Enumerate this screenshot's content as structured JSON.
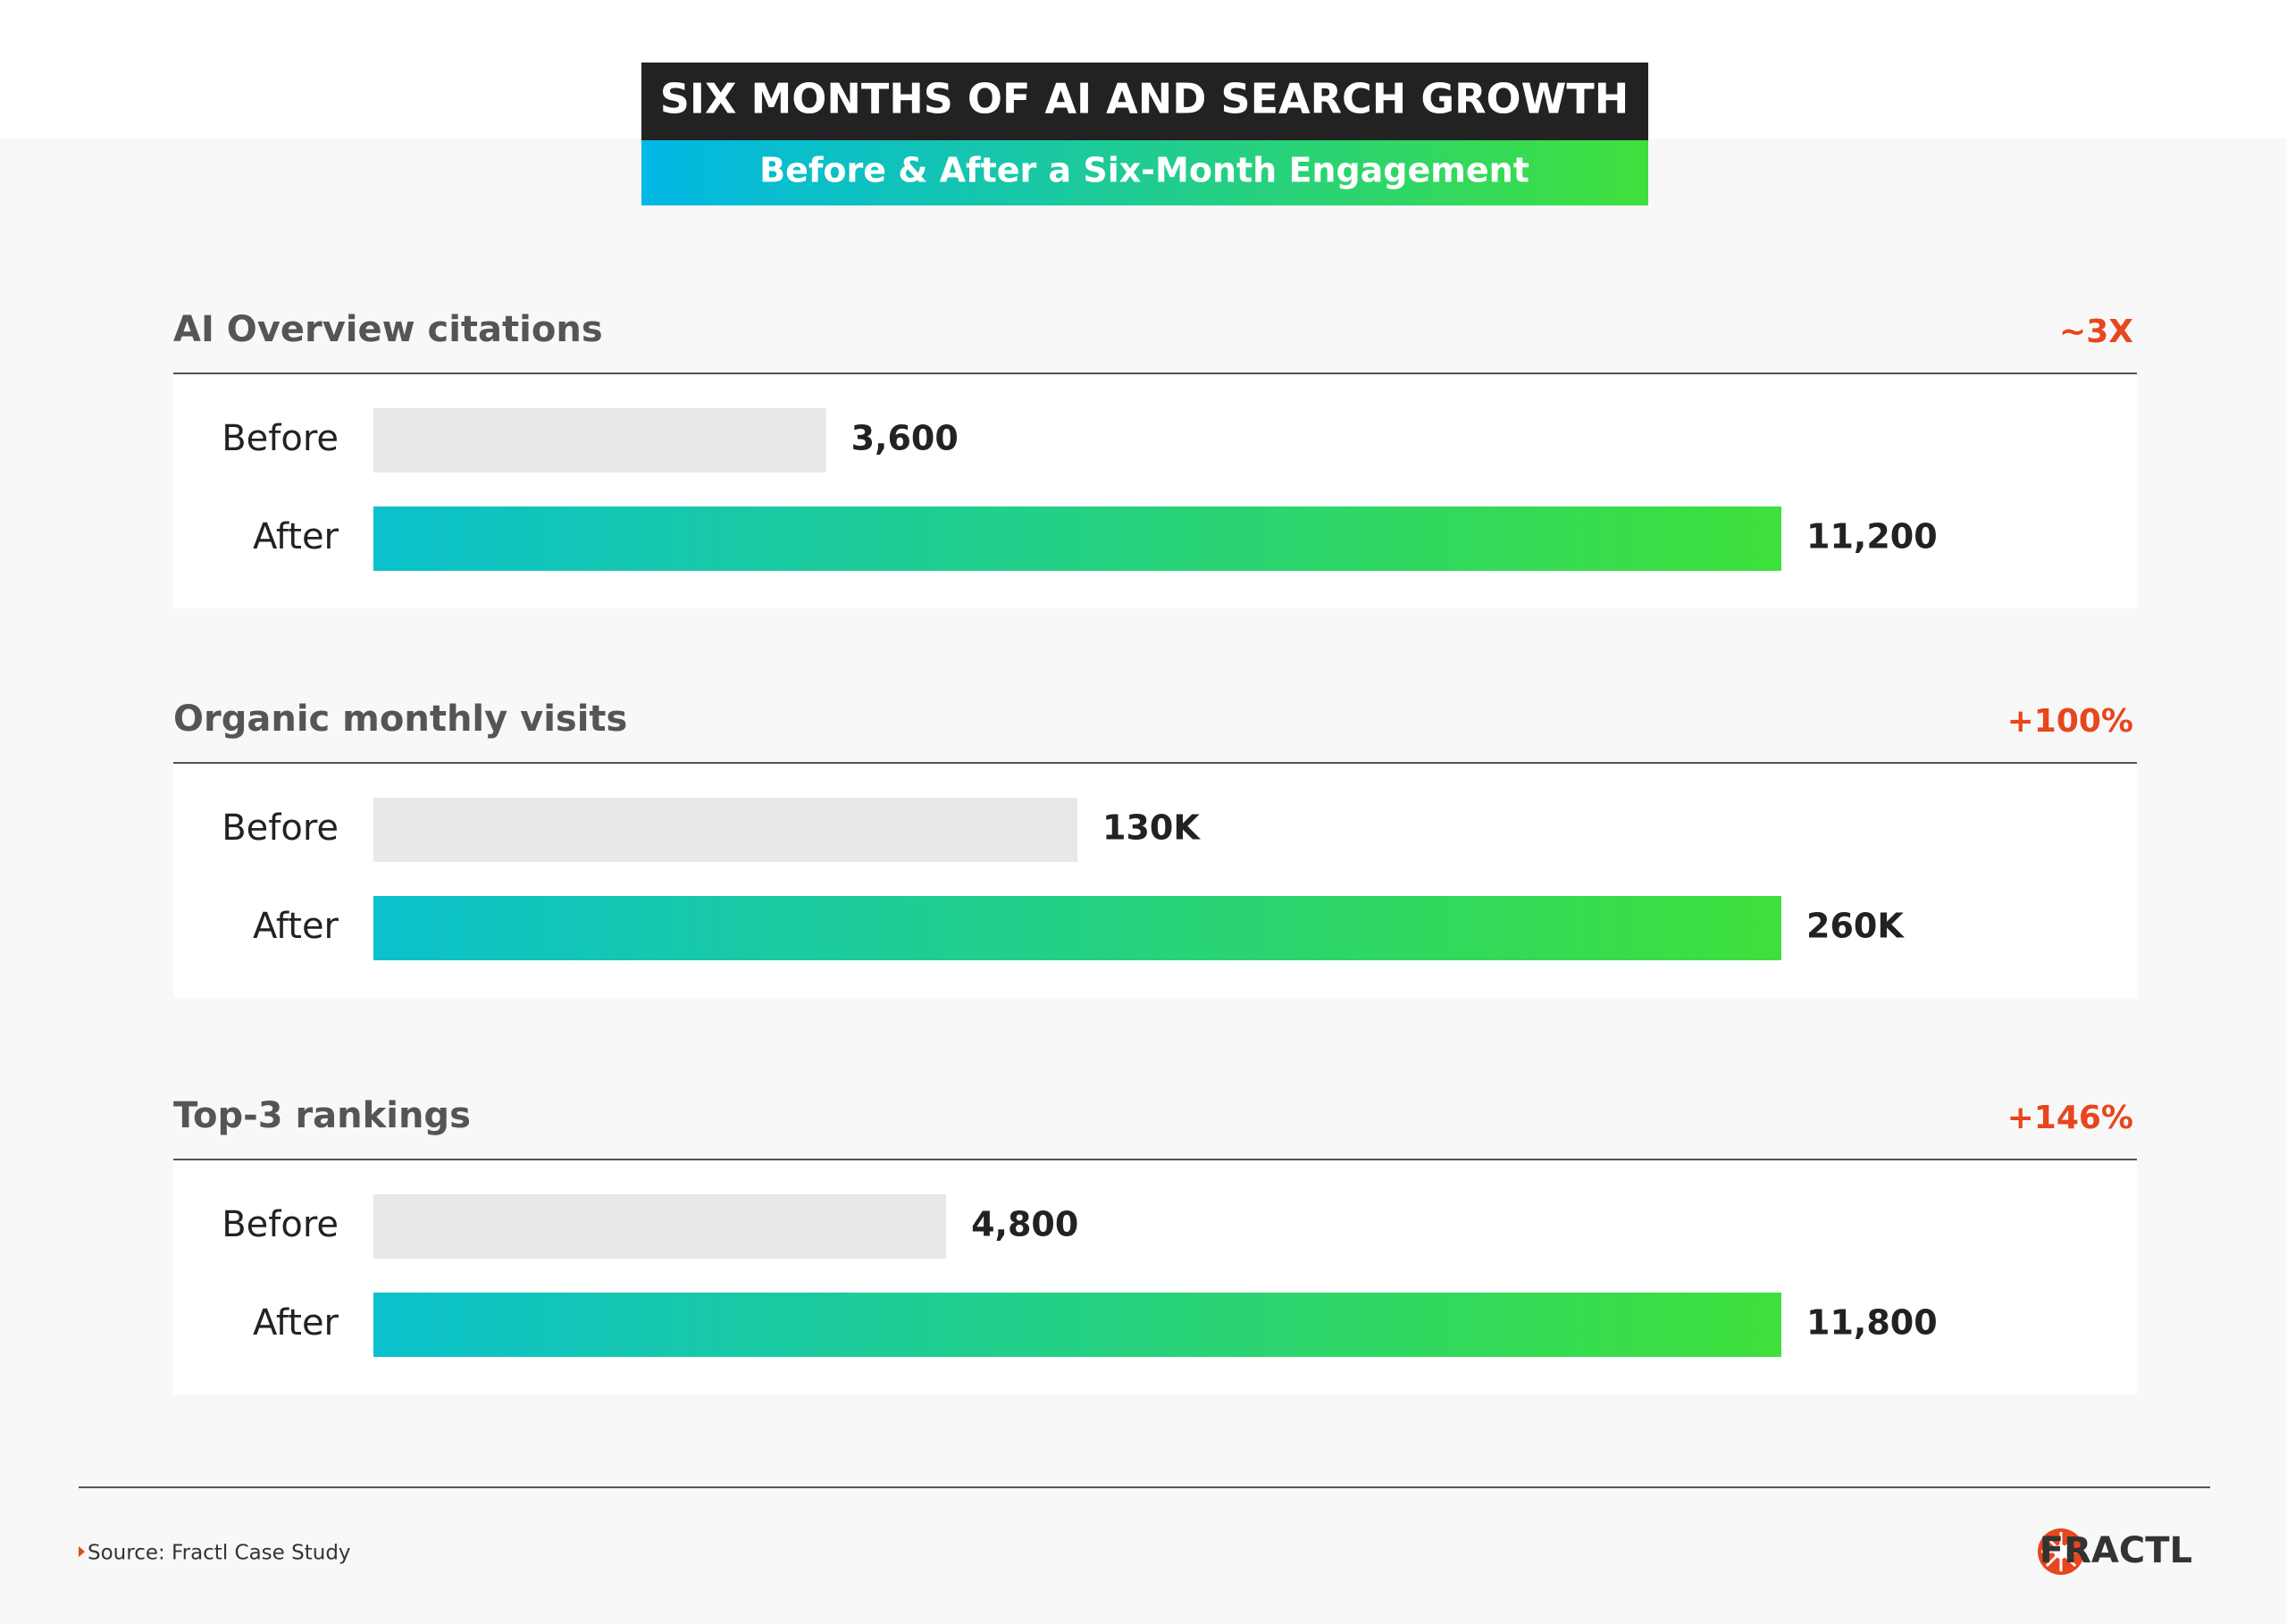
{
  "title": "SIX MONTHS OF AI AND SEARCH GROWTH",
  "subtitle": "Before & After a Six-Month Engagement",
  "chart_data": [
    {
      "type": "bar",
      "title": "AI Overview citations",
      "annotation": "~3X",
      "categories": [
        "Before",
        "After"
      ],
      "values": [
        3600,
        11200
      ],
      "value_labels": [
        "3,600",
        "11,200"
      ],
      "xlim": [
        0,
        11200
      ],
      "colors": [
        "#e8e8e8",
        "gradient"
      ]
    },
    {
      "type": "bar",
      "title": "Organic monthly visits",
      "annotation": "+100%",
      "categories": [
        "Before",
        "After"
      ],
      "values": [
        130000,
        260000
      ],
      "value_labels": [
        "130K",
        "260K"
      ],
      "xlim": [
        0,
        260000
      ],
      "colors": [
        "#e8e8e8",
        "gradient"
      ]
    },
    {
      "type": "bar",
      "title": "Top-3 rankings",
      "annotation": "+146%",
      "categories": [
        "Before",
        "After"
      ],
      "values": [
        4800,
        11800
      ],
      "value_labels": [
        "4,800",
        "11,800"
      ],
      "xlim": [
        0,
        11800
      ],
      "colors": [
        "#e8e8e8",
        "gradient"
      ]
    }
  ],
  "source": "Source: Fractl Case Study",
  "logo": "FRACTL"
}
